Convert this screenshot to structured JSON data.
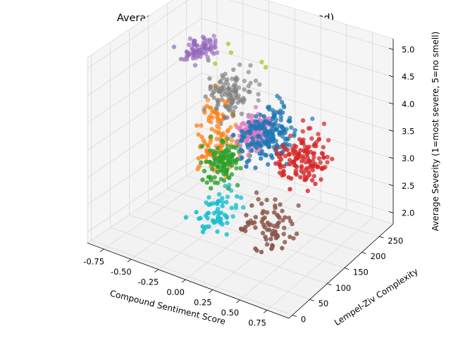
{
  "chart_data": {
    "type": "scatter",
    "projection": "3d",
    "title": "Averaged User Commit Metrics (clustered)",
    "xlabel": "Compound Sentiment Score",
    "ylabel": "Lempel-Ziv Complexity",
    "zlabel": "Average Severity (1=most severe, 5=no smell)",
    "xlim": [
      -0.9,
      0.95
    ],
    "ylim": [
      -10,
      290
    ],
    "zlim": [
      1.8,
      5.2
    ],
    "x_ticks": [
      "-0.75",
      "-0.50",
      "-0.25",
      "0.00",
      "0.25",
      "0.50",
      "0.75"
    ],
    "y_ticks": [
      "0",
      "50",
      "100",
      "150",
      "200",
      "250"
    ],
    "z_ticks": [
      "2.0",
      "2.5",
      "3.0",
      "3.5",
      "4.0",
      "4.5",
      "5.0"
    ],
    "grid": true,
    "legend": "none",
    "clusters": [
      {
        "color": "#9467bd",
        "n": 80,
        "x": [
          -0.85,
          -0.55
        ],
        "y": [
          180,
          280
        ],
        "z": [
          4.1,
          4.6
        ]
      },
      {
        "color": "#7f7f7f",
        "n": 110,
        "x": [
          -0.6,
          -0.05
        ],
        "y": [
          150,
          260
        ],
        "z": [
          3.3,
          4.5
        ]
      },
      {
        "color": "#1f77b4",
        "n": 190,
        "x": [
          0.05,
          0.5
        ],
        "y": [
          60,
          220
        ],
        "z": [
          3.3,
          4.5
        ]
      },
      {
        "color": "#e377c2",
        "n": 150,
        "x": [
          -0.05,
          0.25
        ],
        "y": [
          100,
          200
        ],
        "z": [
          3.3,
          4.2
        ]
      },
      {
        "color": "#d62728",
        "n": 140,
        "x": [
          0.3,
          0.9
        ],
        "y": [
          70,
          210
        ],
        "z": [
          3.1,
          4.2
        ]
      },
      {
        "color": "#ff7f0e",
        "n": 110,
        "x": [
          -0.6,
          -0.15
        ],
        "y": [
          120,
          250
        ],
        "z": [
          2.2,
          4.2
        ]
      },
      {
        "color": "#2ca02c",
        "n": 110,
        "x": [
          -0.35,
          0.05
        ],
        "y": [
          80,
          200
        ],
        "z": [
          2.6,
          3.6
        ]
      },
      {
        "color": "#8c564b",
        "n": 80,
        "x": [
          0.1,
          0.8
        ],
        "y": [
          30,
          150
        ],
        "z": [
          2.0,
          3.1
        ]
      },
      {
        "color": "#17becf",
        "n": 60,
        "x": [
          -0.3,
          0.1
        ],
        "y": [
          40,
          170
        ],
        "z": [
          1.9,
          2.8
        ]
      },
      {
        "color": "#bcbd22",
        "n": 5,
        "x": [
          -0.5,
          0.3
        ],
        "y": [
          100,
          260
        ],
        "z": [
          4.6,
          5.2
        ]
      }
    ]
  }
}
